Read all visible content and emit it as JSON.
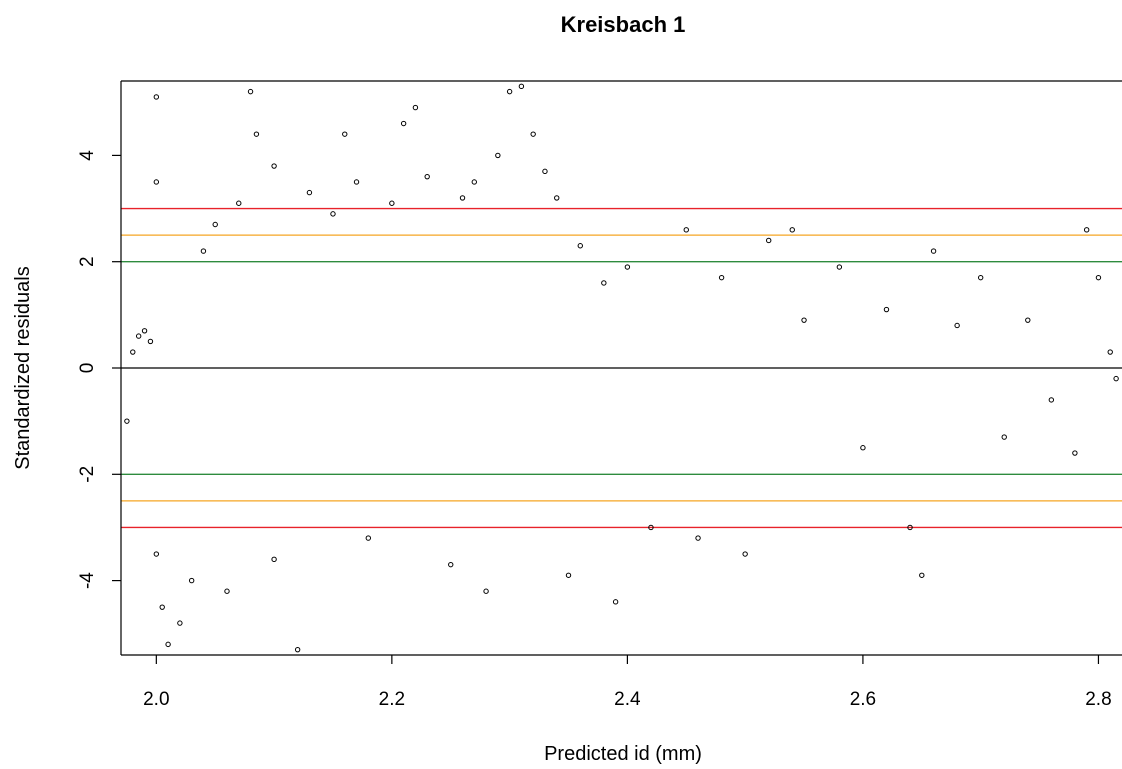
{
  "chart_data": {
    "type": "scatter",
    "title": "Kreisbach 1",
    "xlabel": "Predicted id (mm)",
    "ylabel": "Standardized residuals",
    "xlim": [
      1.97,
      2.82
    ],
    "ylim": [
      -5.4,
      5.4
    ],
    "x_ticks": [
      2.0,
      2.2,
      2.4,
      2.6,
      2.8
    ],
    "x_tick_labels": [
      "2.0",
      "2.2",
      "2.4",
      "2.6",
      "2.8"
    ],
    "y_ticks": [
      -4,
      -2,
      0,
      2,
      4
    ],
    "y_tick_labels": [
      "-4",
      "-2",
      "0",
      "2",
      "4"
    ],
    "grid": false,
    "legend": "none",
    "reference_lines": [
      {
        "y": 3,
        "color": "#e8222a"
      },
      {
        "y": 2.5,
        "color": "#f5a623"
      },
      {
        "y": 2,
        "color": "#2e8b3e"
      },
      {
        "y": 0,
        "color": "#000000"
      },
      {
        "y": -2,
        "color": "#2e8b3e"
      },
      {
        "y": -2.5,
        "color": "#f5a623"
      },
      {
        "y": -3,
        "color": "#e8222a"
      }
    ],
    "series": [
      {
        "marker": "open-circle",
        "color": "#000000",
        "points": [
          [
            1.975,
            -1.0
          ],
          [
            1.98,
            0.3
          ],
          [
            1.985,
            0.6
          ],
          [
            1.99,
            0.7
          ],
          [
            1.995,
            0.5
          ],
          [
            2.0,
            5.1
          ],
          [
            2.0,
            3.5
          ],
          [
            2.0,
            -3.5
          ],
          [
            2.005,
            -4.5
          ],
          [
            2.01,
            -5.2
          ],
          [
            2.02,
            -4.8
          ],
          [
            2.03,
            -4.0
          ],
          [
            2.04,
            2.2
          ],
          [
            2.05,
            2.7
          ],
          [
            2.06,
            -4.2
          ],
          [
            2.07,
            3.1
          ],
          [
            2.08,
            5.2
          ],
          [
            2.085,
            4.4
          ],
          [
            2.1,
            3.8
          ],
          [
            2.1,
            -3.6
          ],
          [
            2.12,
            -5.3
          ],
          [
            2.13,
            3.3
          ],
          [
            2.15,
            2.9
          ],
          [
            2.16,
            4.4
          ],
          [
            2.17,
            3.5
          ],
          [
            2.18,
            -3.2
          ],
          [
            2.2,
            3.1
          ],
          [
            2.21,
            4.6
          ],
          [
            2.22,
            4.9
          ],
          [
            2.23,
            3.6
          ],
          [
            2.25,
            -3.7
          ],
          [
            2.26,
            3.2
          ],
          [
            2.27,
            3.5
          ],
          [
            2.28,
            -4.2
          ],
          [
            2.29,
            4.0
          ],
          [
            2.3,
            5.2
          ],
          [
            2.31,
            5.3
          ],
          [
            2.32,
            4.4
          ],
          [
            2.33,
            3.7
          ],
          [
            2.34,
            3.2
          ],
          [
            2.35,
            -3.9
          ],
          [
            2.36,
            2.3
          ],
          [
            2.38,
            1.6
          ],
          [
            2.39,
            -4.4
          ],
          [
            2.4,
            1.9
          ],
          [
            2.42,
            -3.0
          ],
          [
            2.45,
            2.6
          ],
          [
            2.46,
            -3.2
          ],
          [
            2.48,
            1.7
          ],
          [
            2.5,
            -3.5
          ],
          [
            2.52,
            2.4
          ],
          [
            2.54,
            2.6
          ],
          [
            2.55,
            0.9
          ],
          [
            2.58,
            1.9
          ],
          [
            2.6,
            -1.5
          ],
          [
            2.62,
            1.1
          ],
          [
            2.64,
            -3.0
          ],
          [
            2.65,
            -3.9
          ],
          [
            2.66,
            2.2
          ],
          [
            2.68,
            0.8
          ],
          [
            2.7,
            1.7
          ],
          [
            2.72,
            -1.3
          ],
          [
            2.74,
            0.9
          ],
          [
            2.76,
            -0.6
          ],
          [
            2.78,
            -1.6
          ],
          [
            2.79,
            2.6
          ],
          [
            2.8,
            1.7
          ],
          [
            2.81,
            0.3
          ],
          [
            2.815,
            -0.2
          ]
        ]
      }
    ]
  }
}
